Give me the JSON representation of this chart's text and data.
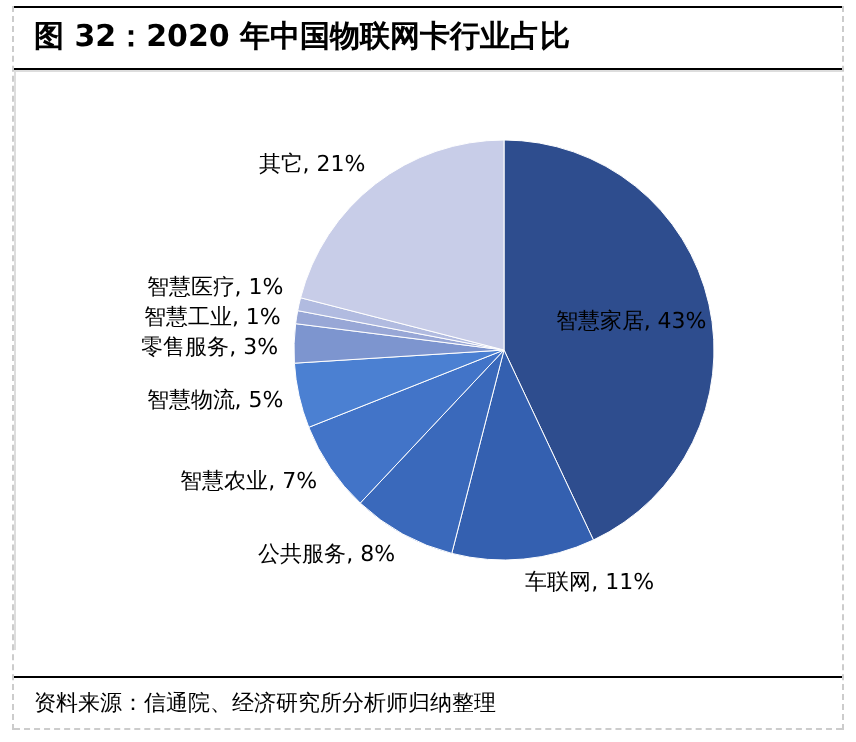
{
  "chart_data": {
    "type": "pie",
    "title": "图 32：2020 年中国物联网卡行业占比",
    "categories": [
      "智慧家居",
      "车联网",
      "公共服务",
      "智慧农业",
      "智慧物流",
      "零售服务",
      "智慧工业",
      "智慧医疗",
      "其它"
    ],
    "values": [
      43,
      11,
      8,
      7,
      5,
      3,
      1,
      1,
      21
    ],
    "value_labels": [
      "43%",
      "11%",
      "8%",
      "7%",
      "5%",
      "3%",
      "1%",
      "1%",
      "21%"
    ],
    "colors": [
      "#2e4d8e",
      "#3460b0",
      "#3a69bb",
      "#4274c8",
      "#4b80d2",
      "#7d95cf",
      "#98a7d6",
      "#b1bbe0",
      "#c8cde8"
    ],
    "annotations": [
      "资料来源：信通院、经济研究所分析师归纳整理"
    ]
  }
}
